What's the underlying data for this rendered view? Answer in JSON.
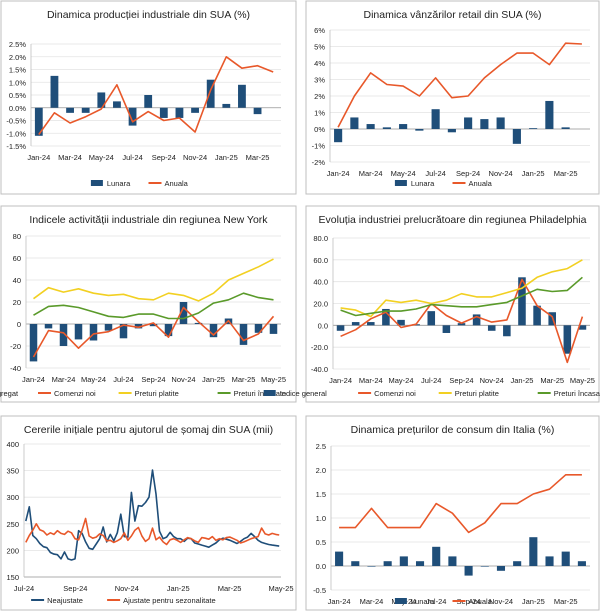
{
  "chart_data": [
    {
      "type": "bar+line",
      "title": "Dinamica producției industriale din SUA (%)",
      "x": [
        "Jan-24",
        "Feb-24",
        "Mar-24",
        "Apr-24",
        "May-24",
        "Jun-24",
        "Jul-24",
        "Aug-24",
        "Sep-24",
        "Oct-24",
        "Nov-24",
        "Dec-24",
        "Jan-25",
        "Feb-25",
        "Mar-25",
        "Apr-25"
      ],
      "tick_labels": [
        "Jan-24",
        "Mar-24",
        "May-24",
        "Jul-24",
        "Sep-24",
        "Nov-24",
        "Jan-25",
        "Mar-25"
      ],
      "y_ticks": [
        "-1.5%",
        "-1.0%",
        "-0.5%",
        "0.0%",
        "0.5%",
        "1.0%",
        "1.5%",
        "2.0%",
        "2.5%"
      ],
      "ylim": [
        -1.5,
        2.5
      ],
      "series": [
        {
          "name": "Lunara",
          "kind": "bar",
          "color": "#1f4e79",
          "values": [
            -1.1,
            1.25,
            -0.2,
            -0.2,
            0.6,
            0.25,
            -0.7,
            0.5,
            -0.4,
            -0.4,
            -0.2,
            1.1,
            0.15,
            0.9,
            -0.25,
            null
          ]
        },
        {
          "name": "Anuala",
          "kind": "line",
          "color": "#e8582a",
          "values": [
            -1.05,
            -0.2,
            -0.6,
            -0.35,
            -0.05,
            0.9,
            -0.55,
            -0.15,
            -0.5,
            -0.4,
            -0.95,
            0.7,
            2.0,
            1.55,
            1.65,
            1.4
          ]
        }
      ]
    },
    {
      "type": "bar+line",
      "title": "Dinamica vânzărilor retail din SUA (%)",
      "x": [
        "Jan-24",
        "Feb-24",
        "Mar-24",
        "Apr-24",
        "May-24",
        "Jun-24",
        "Jul-24",
        "Aug-24",
        "Sep-24",
        "Oct-24",
        "Nov-24",
        "Dec-24",
        "Jan-25",
        "Feb-25",
        "Mar-25",
        "Apr-25"
      ],
      "tick_labels": [
        "Jan-24",
        "Mar-24",
        "May-24",
        "Jul-24",
        "Sep-24",
        "Nov-24",
        "Jan-25",
        "Mar-25"
      ],
      "y_ticks": [
        "-2%",
        "-1%",
        "0%",
        "1%",
        "2%",
        "3%",
        "4%",
        "5%",
        "6%"
      ],
      "ylim": [
        -2,
        6
      ],
      "series": [
        {
          "name": "Lunara",
          "kind": "bar",
          "color": "#1f4e79",
          "values": [
            -0.8,
            0.7,
            0.3,
            0.1,
            0.3,
            -0.1,
            1.2,
            -0.2,
            0.7,
            0.6,
            0.7,
            -0.9,
            0.05,
            1.7,
            0.1,
            null
          ]
        },
        {
          "name": "Anuala",
          "kind": "line",
          "color": "#e8582a",
          "values": [
            0.1,
            2.0,
            3.4,
            2.7,
            2.6,
            2.0,
            3.1,
            1.9,
            2.0,
            3.1,
            3.9,
            4.6,
            4.6,
            3.9,
            5.2,
            5.15
          ]
        }
      ]
    },
    {
      "type": "bar+line",
      "title": "Indicele activității industriale din regiunea New York",
      "x": [
        "Jan-24",
        "Feb-24",
        "Mar-24",
        "Apr-24",
        "May-24",
        "Jun-24",
        "Jul-24",
        "Aug-24",
        "Sep-24",
        "Oct-24",
        "Nov-24",
        "Dec-24",
        "Jan-25",
        "Feb-25",
        "Mar-25",
        "Apr-25",
        "May-25"
      ],
      "tick_labels": [
        "Jan-24",
        "Mar-24",
        "May-24",
        "Jul-24",
        "Sep-24",
        "Nov-24",
        "Jan-25",
        "Mar-25",
        "May-25"
      ],
      "y_ticks": [
        "-40",
        "-20",
        "0",
        "20",
        "40",
        "60",
        "80"
      ],
      "ylim": [
        -40,
        80
      ],
      "series": [
        {
          "name": "Agregat",
          "kind": "bar",
          "color": "#1f4e79",
          "values": [
            -34,
            -4,
            -20,
            -14,
            -15,
            -6,
            -13,
            -4,
            -2,
            -11,
            20,
            1,
            -12,
            5,
            -19,
            -8,
            -9
          ]
        },
        {
          "name": "Comenzi noi",
          "kind": "line",
          "color": "#e8582a",
          "values": [
            -30,
            -6,
            -8,
            -22,
            -9,
            -7,
            -1,
            -3,
            1,
            -12,
            15,
            2,
            -10,
            3,
            -15,
            -9,
            7
          ]
        },
        {
          "name": "Preturi platite",
          "kind": "line",
          "color": "#f2d022",
          "values": [
            23,
            33,
            29,
            32,
            28,
            26,
            27,
            23,
            22,
            28,
            26,
            21,
            28,
            40,
            46,
            52,
            59
          ]
        },
        {
          "name": "Preturi încasate",
          "kind": "line",
          "color": "#5a9a2a",
          "values": [
            8,
            16,
            17,
            15,
            11,
            7,
            6,
            9,
            9,
            5,
            5,
            10,
            19,
            22,
            28,
            24,
            22
          ]
        }
      ]
    },
    {
      "type": "bar+line",
      "title": "Evoluția industriei prelucrătoare din regiunea Philadelphia",
      "x": [
        "Jan-24",
        "Feb-24",
        "Mar-24",
        "Apr-24",
        "May-24",
        "Jun-24",
        "Jul-24",
        "Aug-24",
        "Sep-24",
        "Oct-24",
        "Nov-24",
        "Dec-24",
        "Jan-25",
        "Feb-25",
        "Mar-25",
        "Apr-25",
        "May-25"
      ],
      "tick_labels": [
        "Jan-24",
        "Mar-24",
        "May-24",
        "Jul-24",
        "Sep-24",
        "Nov-24",
        "Jan-25",
        "Mar-25",
        "May-25"
      ],
      "y_ticks": [
        "-40.0",
        "-20.0",
        "0.0",
        "20.0",
        "40.0",
        "60.0",
        "80.0"
      ],
      "ylim": [
        -40,
        80
      ],
      "series": [
        {
          "name": "Indice general",
          "kind": "bar",
          "color": "#1f4e79",
          "values": [
            -5,
            3,
            3,
            15,
            5,
            1,
            13,
            -7,
            2,
            10,
            -5,
            -10,
            44,
            18,
            12,
            -26,
            -4
          ]
        },
        {
          "name": "Comenzi noi",
          "kind": "line",
          "color": "#e8582a",
          "values": [
            -10,
            -4,
            6,
            12,
            -2,
            1,
            20,
            9,
            2,
            8,
            3,
            5,
            42,
            18,
            8,
            -34,
            8
          ]
        },
        {
          "name": "Preturi platite",
          "kind": "line",
          "color": "#f2d022",
          "values": [
            16,
            14,
            8,
            23,
            21,
            23,
            20,
            23,
            29,
            26,
            26,
            30,
            34,
            44,
            49,
            52,
            60
          ]
        },
        {
          "name": "Preturi încasate",
          "kind": "line",
          "color": "#5a9a2a",
          "values": [
            14,
            9,
            11,
            13,
            13,
            15,
            19,
            18,
            17,
            17,
            19,
            21,
            27,
            33,
            31,
            32,
            44
          ]
        }
      ]
    },
    {
      "type": "line",
      "title": "Cererile inițiale pentru ajutorul de șomaj din SUA (mii)",
      "x_count": 73,
      "tick_labels": [
        "Jul-24",
        "Sep-24",
        "Nov-24",
        "Jan-25",
        "Mar-25",
        "May-25"
      ],
      "y_ticks": [
        "150",
        "200",
        "250",
        "300",
        "350",
        "400"
      ],
      "ylim": [
        150,
        400
      ],
      "series": [
        {
          "name": "Neajustate",
          "color": "#1f4e79",
          "values": [
            255,
            282,
            228,
            222,
            213,
            207,
            205,
            196,
            193,
            192,
            184,
            197,
            184,
            182,
            184,
            237,
            232,
            216,
            204,
            202,
            212,
            222,
            244,
            216,
            230,
            218,
            233,
            268,
            226,
            225,
            309,
            255,
            284,
            283,
            290,
            300,
            351,
            306,
            236,
            222,
            225,
            234,
            226,
            222,
            222,
            217,
            223,
            222,
            214,
            212,
            210,
            208,
            206,
            210,
            214,
            220,
            223,
            221,
            219,
            216,
            213,
            217,
            222,
            225,
            232,
            226,
            219,
            215,
            213,
            211,
            210,
            209,
            208
          ]
        },
        {
          "name": "Ajustate pentru sezonalitate",
          "color": "#e8582a",
          "values": [
            215,
            228,
            238,
            250,
            239,
            236,
            229,
            233,
            230,
            237,
            232,
            230,
            236,
            233,
            222,
            220,
            238,
            260,
            227,
            223,
            225,
            231,
            228,
            218,
            219,
            215,
            218,
            222,
            233,
            219,
            227,
            238,
            243,
            227,
            217,
            222,
            242,
            220,
            225,
            216,
            211,
            220,
            222,
            219,
            215,
            220,
            224,
            222,
            218,
            215,
            224,
            223,
            221,
            226,
            219,
            222,
            220,
            224,
            225,
            222,
            219,
            214,
            216,
            219,
            222,
            224,
            226,
            242,
            231,
            229,
            232,
            230,
            229
          ]
        }
      ]
    },
    {
      "type": "bar+line",
      "title": "Dinamica prețurilor de consum din Italia (%)",
      "x": [
        "Jan-24",
        "Feb-24",
        "Mar-24",
        "Apr-24",
        "May-24",
        "Jun-24",
        "Jul-24",
        "Aug-24",
        "Sep-24",
        "Oct-24",
        "Nov-24",
        "Dec-24",
        "Jan-25",
        "Feb-25",
        "Mar-25",
        "Apr-25"
      ],
      "tick_labels": [
        "Jan-24",
        "Mar-24",
        "May-24",
        "Jul-24",
        "Sep-24",
        "Nov-24",
        "Jan-25",
        "Mar-25"
      ],
      "y_ticks": [
        "-0.5",
        "0.0",
        "0.5",
        "1.0",
        "1.5",
        "2.0",
        "2.5"
      ],
      "ylim": [
        -0.5,
        2.5
      ],
      "series": [
        {
          "name": "Lunara",
          "kind": "bar",
          "color": "#1f4e79",
          "values": [
            0.3,
            0.1,
            0.0,
            0.1,
            0.2,
            0.1,
            0.4,
            0.2,
            -0.2,
            0.0,
            -0.1,
            0.1,
            0.6,
            0.2,
            0.3,
            0.1
          ]
        },
        {
          "name": "Anuala",
          "kind": "line",
          "color": "#e8582a",
          "values": [
            0.8,
            0.8,
            1.2,
            0.8,
            0.8,
            0.8,
            1.3,
            1.1,
            0.7,
            0.9,
            1.3,
            1.3,
            1.5,
            1.6,
            1.9,
            1.9
          ]
        }
      ]
    }
  ]
}
